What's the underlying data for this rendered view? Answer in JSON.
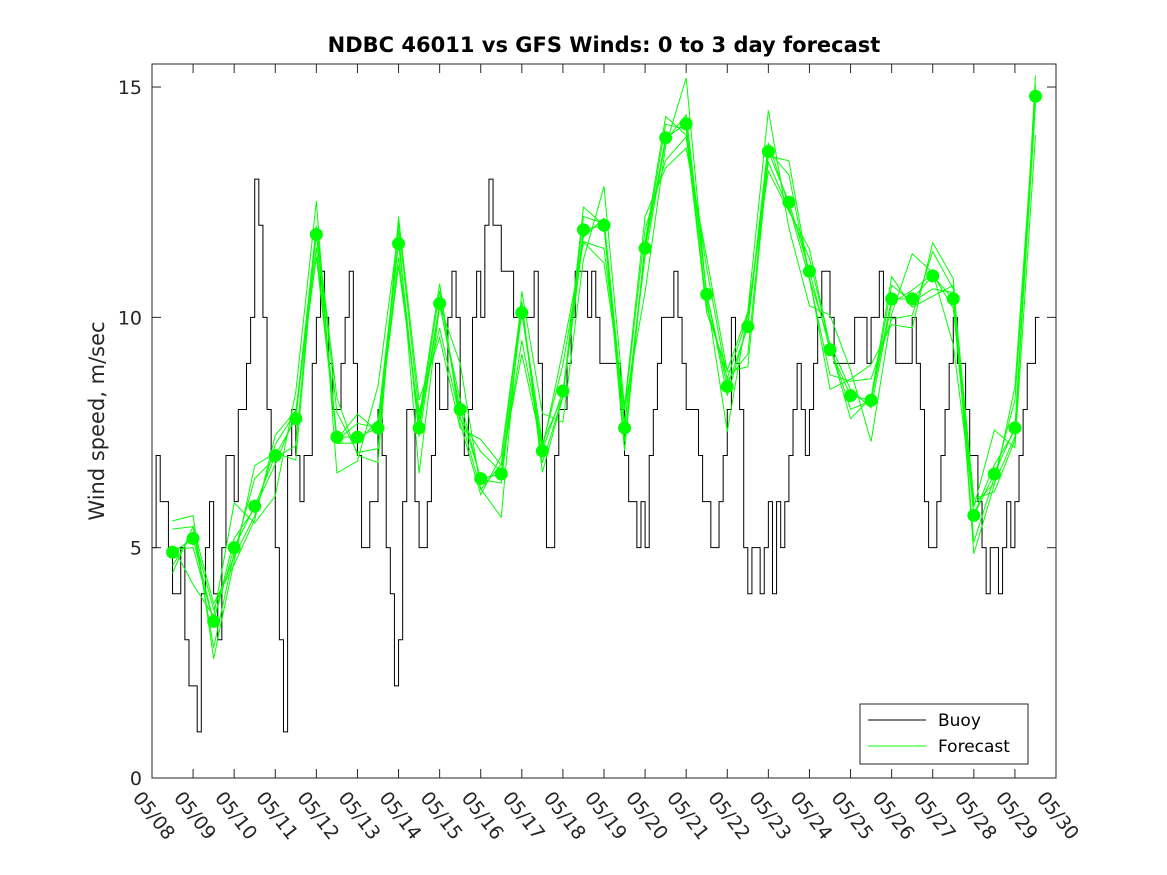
{
  "chart_data": {
    "type": "line",
    "title": "NDBC 46011 vs GFS Winds: 0 to 3 day forecast",
    "xlabel": "",
    "ylabel": "Wind speed, m/sec",
    "xlim": [
      0,
      22
    ],
    "ylim": [
      0,
      15.5
    ],
    "x_ticks": [
      "05/08",
      "05/09",
      "05/10",
      "05/11",
      "05/12",
      "05/13",
      "05/14",
      "05/15",
      "05/16",
      "05/17",
      "05/18",
      "05/19",
      "05/20",
      "05/21",
      "05/22",
      "05/23",
      "05/24",
      "05/25",
      "05/26",
      "05/27",
      "05/28",
      "05/29",
      "05/30"
    ],
    "y_ticks": [
      0,
      5,
      10,
      15
    ],
    "grid": false,
    "legend_position": "bottom-right",
    "legend": [
      {
        "label": "Buoy",
        "color": "#000000"
      },
      {
        "label": "Forecast",
        "color": "#00ff00"
      }
    ],
    "series": [
      {
        "name": "Buoy",
        "color": "#000000",
        "x": [
          0,
          0.1,
          0.2,
          0.3,
          0.4,
          0.5,
          0.6,
          0.7,
          0.8,
          0.9,
          1.0,
          1.1,
          1.2,
          1.3,
          1.4,
          1.5,
          1.6,
          1.7,
          1.8,
          1.9,
          2.0,
          2.1,
          2.2,
          2.3,
          2.4,
          2.5,
          2.6,
          2.7,
          2.8,
          2.9,
          3.0,
          3.1,
          3.2,
          3.3,
          3.4,
          3.5,
          3.6,
          3.7,
          3.8,
          3.9,
          4.0,
          4.1,
          4.2,
          4.3,
          4.4,
          4.5,
          4.6,
          4.7,
          4.8,
          4.9,
          5.0,
          5.1,
          5.2,
          5.3,
          5.4,
          5.5,
          5.6,
          5.7,
          5.8,
          5.9,
          6.0,
          6.1,
          6.2,
          6.3,
          6.4,
          6.5,
          6.6,
          6.7,
          6.8,
          6.9,
          7.0,
          7.1,
          7.2,
          7.3,
          7.4,
          7.5,
          7.6,
          7.7,
          7.8,
          7.9,
          8.0,
          8.1,
          8.2,
          8.3,
          8.4,
          8.5,
          8.6,
          8.7,
          8.8,
          8.9,
          9.0,
          9.1,
          9.2,
          9.3,
          9.4,
          9.5,
          9.6,
          9.7,
          9.8,
          9.9,
          10.0,
          10.1,
          10.2,
          10.3,
          10.4,
          10.5,
          10.6,
          10.7,
          10.8,
          10.9,
          11.0,
          11.1,
          11.2,
          11.3,
          11.4,
          11.5,
          11.6,
          11.7,
          11.8,
          11.9,
          12.0,
          12.1,
          12.2,
          12.3,
          12.4,
          12.5,
          12.6,
          12.7,
          12.8,
          12.9,
          13.0,
          13.1,
          13.2,
          13.3,
          13.4,
          13.5,
          13.6,
          13.7,
          13.8,
          13.9,
          14.0,
          14.1,
          14.2,
          14.3,
          14.4,
          14.5,
          14.6,
          14.7,
          14.8,
          14.9,
          15.0,
          15.1,
          15.2,
          15.3,
          15.4,
          15.5,
          15.6,
          15.7,
          15.8,
          15.9,
          16.0,
          16.1,
          16.2,
          16.3,
          16.4,
          16.5,
          16.6,
          16.7,
          16.8,
          16.9,
          17.0,
          17.1,
          17.2,
          17.3,
          17.4,
          17.5,
          17.6,
          17.7,
          17.8,
          17.9,
          18.0,
          18.1,
          18.2,
          18.3,
          18.4,
          18.5,
          18.6,
          18.7,
          18.8,
          18.9,
          19.0,
          19.1,
          19.2,
          19.3,
          19.4,
          19.5,
          19.6,
          19.7,
          19.8,
          19.9,
          20.0,
          20.1,
          20.2,
          20.3,
          20.4,
          20.5,
          20.6,
          20.7,
          20.8,
          20.9,
          21.0,
          21.1,
          21.2,
          21.3,
          21.4,
          21.5
        ],
        "values": [
          5,
          7,
          6,
          6,
          5,
          4,
          4,
          5,
          3,
          2,
          2,
          1,
          4,
          5,
          6,
          4,
          3,
          5,
          7,
          7,
          6,
          8,
          8,
          9,
          10,
          13,
          12,
          10,
          8,
          7,
          5,
          3,
          1,
          7,
          8,
          7,
          6,
          7,
          7,
          9,
          10,
          11,
          10,
          9,
          8,
          8,
          9,
          10,
          11,
          9,
          7,
          5,
          5,
          6,
          6,
          8,
          7,
          5,
          4,
          2,
          3,
          6,
          8,
          8,
          6,
          5,
          5,
          6,
          7,
          9,
          8,
          8,
          10,
          11,
          10,
          8,
          7,
          8,
          10,
          11,
          10,
          12,
          13,
          12,
          12,
          11,
          11,
          11,
          10,
          10,
          10,
          10,
          10,
          11,
          9,
          7,
          5,
          5,
          7,
          8,
          8,
          9,
          10,
          11,
          11,
          11,
          10,
          11,
          10,
          9,
          9,
          9,
          9,
          9,
          8,
          7,
          6,
          6,
          5,
          6,
          5,
          7,
          8,
          9,
          10,
          10,
          10,
          11,
          10,
          9,
          8,
          8,
          8,
          7,
          6,
          6,
          5,
          5,
          6,
          7,
          8,
          10,
          9,
          8,
          5,
          4,
          5,
          5,
          4,
          5,
          6,
          4,
          6,
          5,
          6,
          7,
          8,
          9,
          8,
          7,
          8,
          9,
          10,
          11,
          11,
          10,
          9,
          9,
          9,
          9,
          9,
          10,
          10,
          10,
          9,
          10,
          10,
          11,
          10,
          10,
          10,
          9,
          9,
          9,
          9,
          10,
          9,
          8,
          6,
          5,
          5,
          6,
          7,
          8,
          9,
          10,
          9,
          9,
          8,
          7,
          7,
          6,
          5,
          4,
          5,
          5,
          4,
          5,
          6,
          5,
          6,
          7,
          8,
          9,
          9,
          10
        ]
      },
      {
        "name": "Forecast",
        "color": "#00ff00",
        "x": [
          0.5,
          1,
          1.5,
          2,
          2.5,
          3,
          3.5,
          4,
          4.5,
          5,
          5.5,
          6,
          6.5,
          7,
          7.5,
          8,
          8.5,
          9,
          9.5,
          10,
          10.5,
          11,
          11.5,
          12,
          12.5,
          13,
          13.5,
          14,
          14.5,
          15,
          15.5,
          16,
          16.5,
          17,
          17.5,
          18,
          18.5,
          19,
          19.5,
          20,
          20.5,
          21,
          21.5
        ],
        "values": [
          4.9,
          5.2,
          3.4,
          5.0,
          5.9,
          7.0,
          7.8,
          11.8,
          7.4,
          7.4,
          7.6,
          11.6,
          7.6,
          10.3,
          8.0,
          6.5,
          6.6,
          10.1,
          7.1,
          8.4,
          11.9,
          12.0,
          7.6,
          11.5,
          13.9,
          14.2,
          10.5,
          8.5,
          9.8,
          13.6,
          12.5,
          11.0,
          9.3,
          8.3,
          8.2,
          10.4,
          10.4,
          10.9,
          10.4,
          5.7,
          6.6,
          7.6,
          14.8
        ]
      }
    ]
  }
}
